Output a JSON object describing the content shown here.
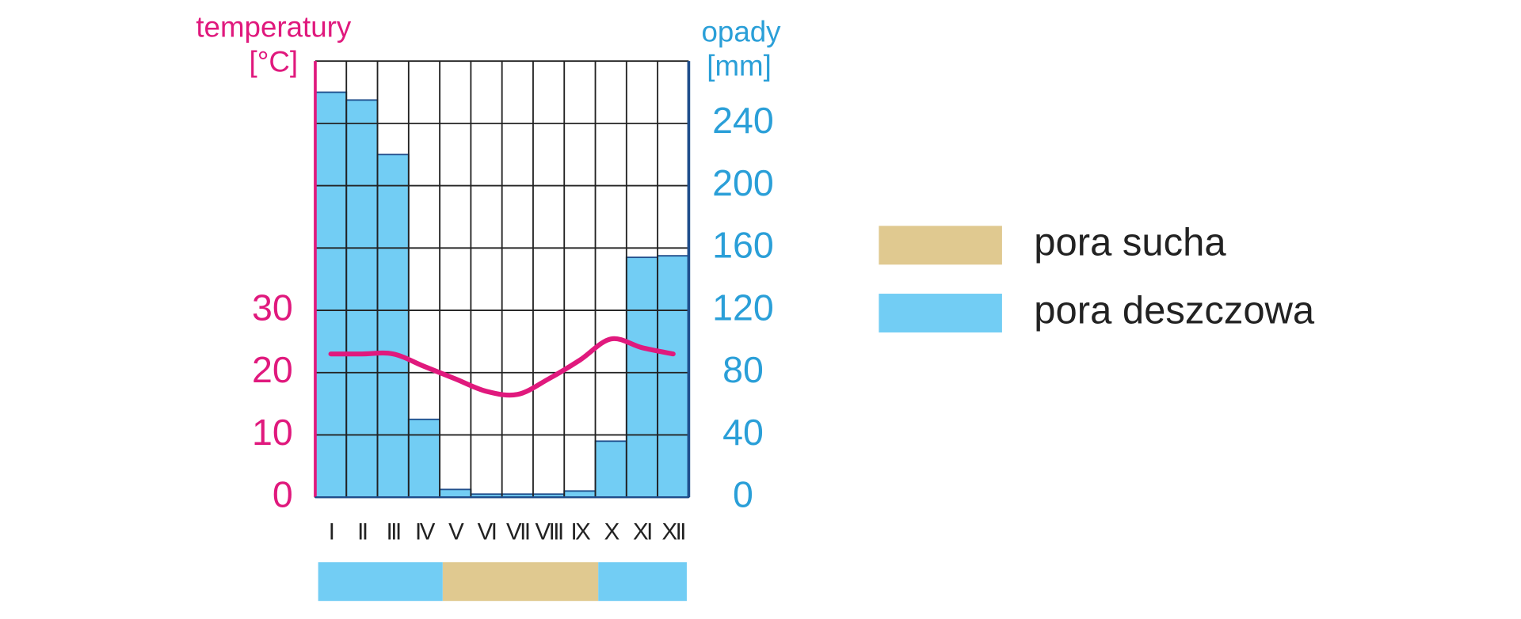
{
  "chart_data": {
    "type": "bar",
    "y_label": [
      "temperatury",
      "[°C]"
    ],
    "y2_label": [
      "opady",
      "[mm]"
    ],
    "categories": [
      "I",
      "II",
      "III",
      "IV",
      "V",
      "VI",
      "VII",
      "VIII",
      "IX",
      "X",
      "XI",
      "XII"
    ],
    "series": [
      {
        "type": "bar",
        "axis": "y2",
        "color": "#72cdf4",
        "values": [
          260,
          255,
          220,
          50,
          5,
          2,
          2,
          2,
          4,
          36,
          154,
          155
        ]
      },
      {
        "type": "line",
        "axis": "y",
        "color": "#e0197d",
        "values": [
          23,
          23,
          23,
          21,
          19,
          17,
          16.5,
          19,
          22,
          25.4,
          24,
          23
        ]
      }
    ],
    "ylim": [
      0,
      70
    ],
    "yticks": [
      0,
      10,
      20,
      30
    ],
    "y2lim": [
      0,
      280
    ],
    "y2ticks": [
      0,
      40,
      80,
      120,
      160,
      200,
      240
    ],
    "grid": true,
    "legend": [
      {
        "label": "pora sucha",
        "color": "#e0c990",
        "spans": [
          [
            4,
            8
          ]
        ]
      },
      {
        "label": "pora deszczowa",
        "color": "#72cdf4",
        "spans": [
          [
            0,
            3
          ],
          [
            9,
            11
          ]
        ]
      }
    ]
  }
}
